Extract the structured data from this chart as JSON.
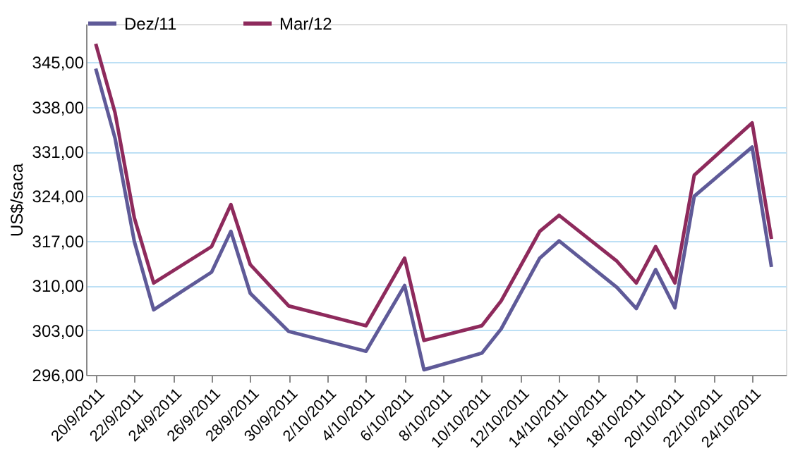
{
  "chart_data": {
    "type": "line",
    "ylabel": "US$/saca",
    "legend": "top",
    "grid": "y",
    "marker": "none",
    "line_style": "solid",
    "ylim": [
      296,
      351
    ],
    "yticks": [
      {
        "value": 296,
        "label": "296,00"
      },
      {
        "value": 303,
        "label": "303,00"
      },
      {
        "value": 310,
        "label": "310,00"
      },
      {
        "value": 317,
        "label": "317,00"
      },
      {
        "value": 324,
        "label": "324,00"
      },
      {
        "value": 331,
        "label": "331,00"
      },
      {
        "value": 338,
        "label": "338,00"
      },
      {
        "value": 345,
        "label": "345,00"
      }
    ],
    "xlim": [
      "2011-09-19T12:00",
      "2011-10-25T18:00"
    ],
    "xticks": [
      {
        "value": "2011-09-20",
        "label": "20/9/2011"
      },
      {
        "value": "2011-09-22",
        "label": "22/9/2011"
      },
      {
        "value": "2011-09-24",
        "label": "24/9/2011"
      },
      {
        "value": "2011-09-26",
        "label": "26/9/2011"
      },
      {
        "value": "2011-09-28",
        "label": "28/9/2011"
      },
      {
        "value": "2011-09-30",
        "label": "30/9/2011"
      },
      {
        "value": "2011-10-02",
        "label": "2/10/2011"
      },
      {
        "value": "2011-10-04",
        "label": "4/10/2011"
      },
      {
        "value": "2011-10-06",
        "label": "6/10/2011"
      },
      {
        "value": "2011-10-08",
        "label": "8/10/2011"
      },
      {
        "value": "2011-10-10",
        "label": "10/10/2011"
      },
      {
        "value": "2011-10-12",
        "label": "12/10/2011"
      },
      {
        "value": "2011-10-14",
        "label": "14/10/2011"
      },
      {
        "value": "2011-10-16",
        "label": "16/10/2011"
      },
      {
        "value": "2011-10-18",
        "label": "18/10/2011"
      },
      {
        "value": "2011-10-20",
        "label": "20/10/2011"
      },
      {
        "value": "2011-10-22",
        "label": "22/10/2011"
      },
      {
        "value": "2011-10-24",
        "label": "24/10/2011"
      }
    ],
    "x": [
      "2011-09-20",
      "2011-09-21",
      "2011-09-22",
      "2011-09-23",
      "2011-09-26",
      "2011-09-27",
      "2011-09-28",
      "2011-09-30",
      "2011-10-04",
      "2011-10-06",
      "2011-10-07",
      "2011-10-10",
      "2011-10-11",
      "2011-10-13",
      "2011-10-14",
      "2011-10-17",
      "2011-10-18",
      "2011-10-19",
      "2011-10-20",
      "2011-10-21",
      "2011-10-24",
      "2011-10-25"
    ],
    "series": [
      {
        "name": "Dez/11",
        "color": "#5f5a98",
        "values": [
          344.0,
          333.1,
          316.9,
          306.2,
          312.1,
          318.5,
          308.8,
          302.8,
          299.7,
          310.0,
          296.8,
          299.4,
          303.2,
          314.3,
          317.0,
          309.7,
          306.4,
          312.5,
          306.5,
          324.0,
          331.7,
          312.9
        ]
      },
      {
        "name": "Mar/12",
        "color": "#8e2a5c",
        "values": [
          347.9,
          337.1,
          320.6,
          310.4,
          316.1,
          322.7,
          313.3,
          306.8,
          303.7,
          314.3,
          301.4,
          303.7,
          307.6,
          318.5,
          321.0,
          313.8,
          310.4,
          316.1,
          310.4,
          327.3,
          335.5,
          317.3
        ]
      }
    ]
  }
}
